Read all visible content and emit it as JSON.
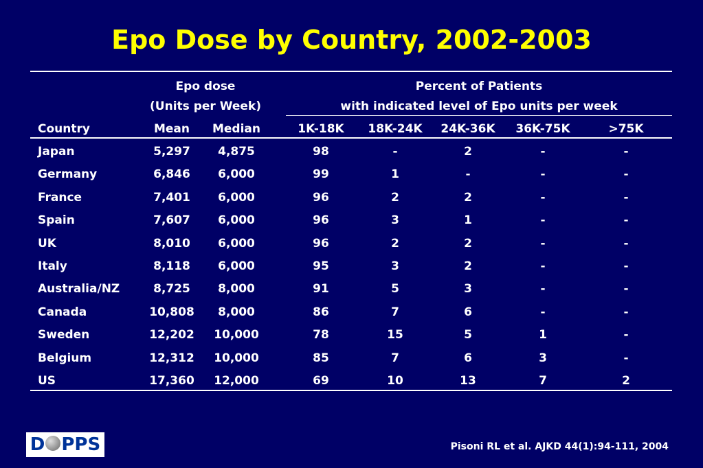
{
  "title": "Epo Dose by Country, 2002-2003",
  "header": {
    "epo_dose_line1": "Epo dose",
    "epo_dose_line2": "(Units per Week)",
    "percent_line1": "Percent of Patients",
    "percent_line2": "with indicated level of Epo units per week",
    "columns": [
      "Country",
      "Mean",
      "Median",
      "1K-18K",
      "18K-24K",
      "24K-36K",
      "36K-75K",
      ">75K"
    ]
  },
  "rows": [
    [
      "Japan",
      "5,297",
      "4,875",
      "98",
      "-",
      "2",
      "-",
      "-"
    ],
    [
      "Germany",
      "6,846",
      "6,000",
      "99",
      "1",
      "-",
      "-",
      "-"
    ],
    [
      "France",
      "7,401",
      "6,000",
      "96",
      "2",
      "2",
      "-",
      "-"
    ],
    [
      "Spain",
      "7,607",
      "6,000",
      "96",
      "3",
      "1",
      "-",
      "-"
    ],
    [
      "UK",
      "8,010",
      "6,000",
      "96",
      "2",
      "2",
      "-",
      "-"
    ],
    [
      "Italy",
      "8,118",
      "6,000",
      "95",
      "3",
      "2",
      "-",
      "-"
    ],
    [
      "Australia/NZ",
      "8,725",
      "8,000",
      "91",
      "5",
      "3",
      "-",
      "-"
    ],
    [
      "Canada",
      "10,808",
      "8,000",
      "86",
      "7",
      "6",
      "-",
      "-"
    ],
    [
      "Sweden",
      "12,202",
      "10,000",
      "78",
      "15",
      "5",
      "1",
      "-"
    ],
    [
      "Belgium",
      "12,312",
      "10,000",
      "85",
      "7",
      "6",
      "3",
      "-"
    ],
    [
      "US",
      "17,360",
      "12,000",
      "69",
      "10",
      "13",
      "7",
      "2"
    ]
  ],
  "logo": {
    "left": "D",
    "right": "PPS"
  },
  "citation": "Pisoni RL et al. AJKD 44(1):94-111, 2004",
  "colors": {
    "background": "#000066",
    "title": "#ffff00",
    "text": "#ffffff"
  }
}
